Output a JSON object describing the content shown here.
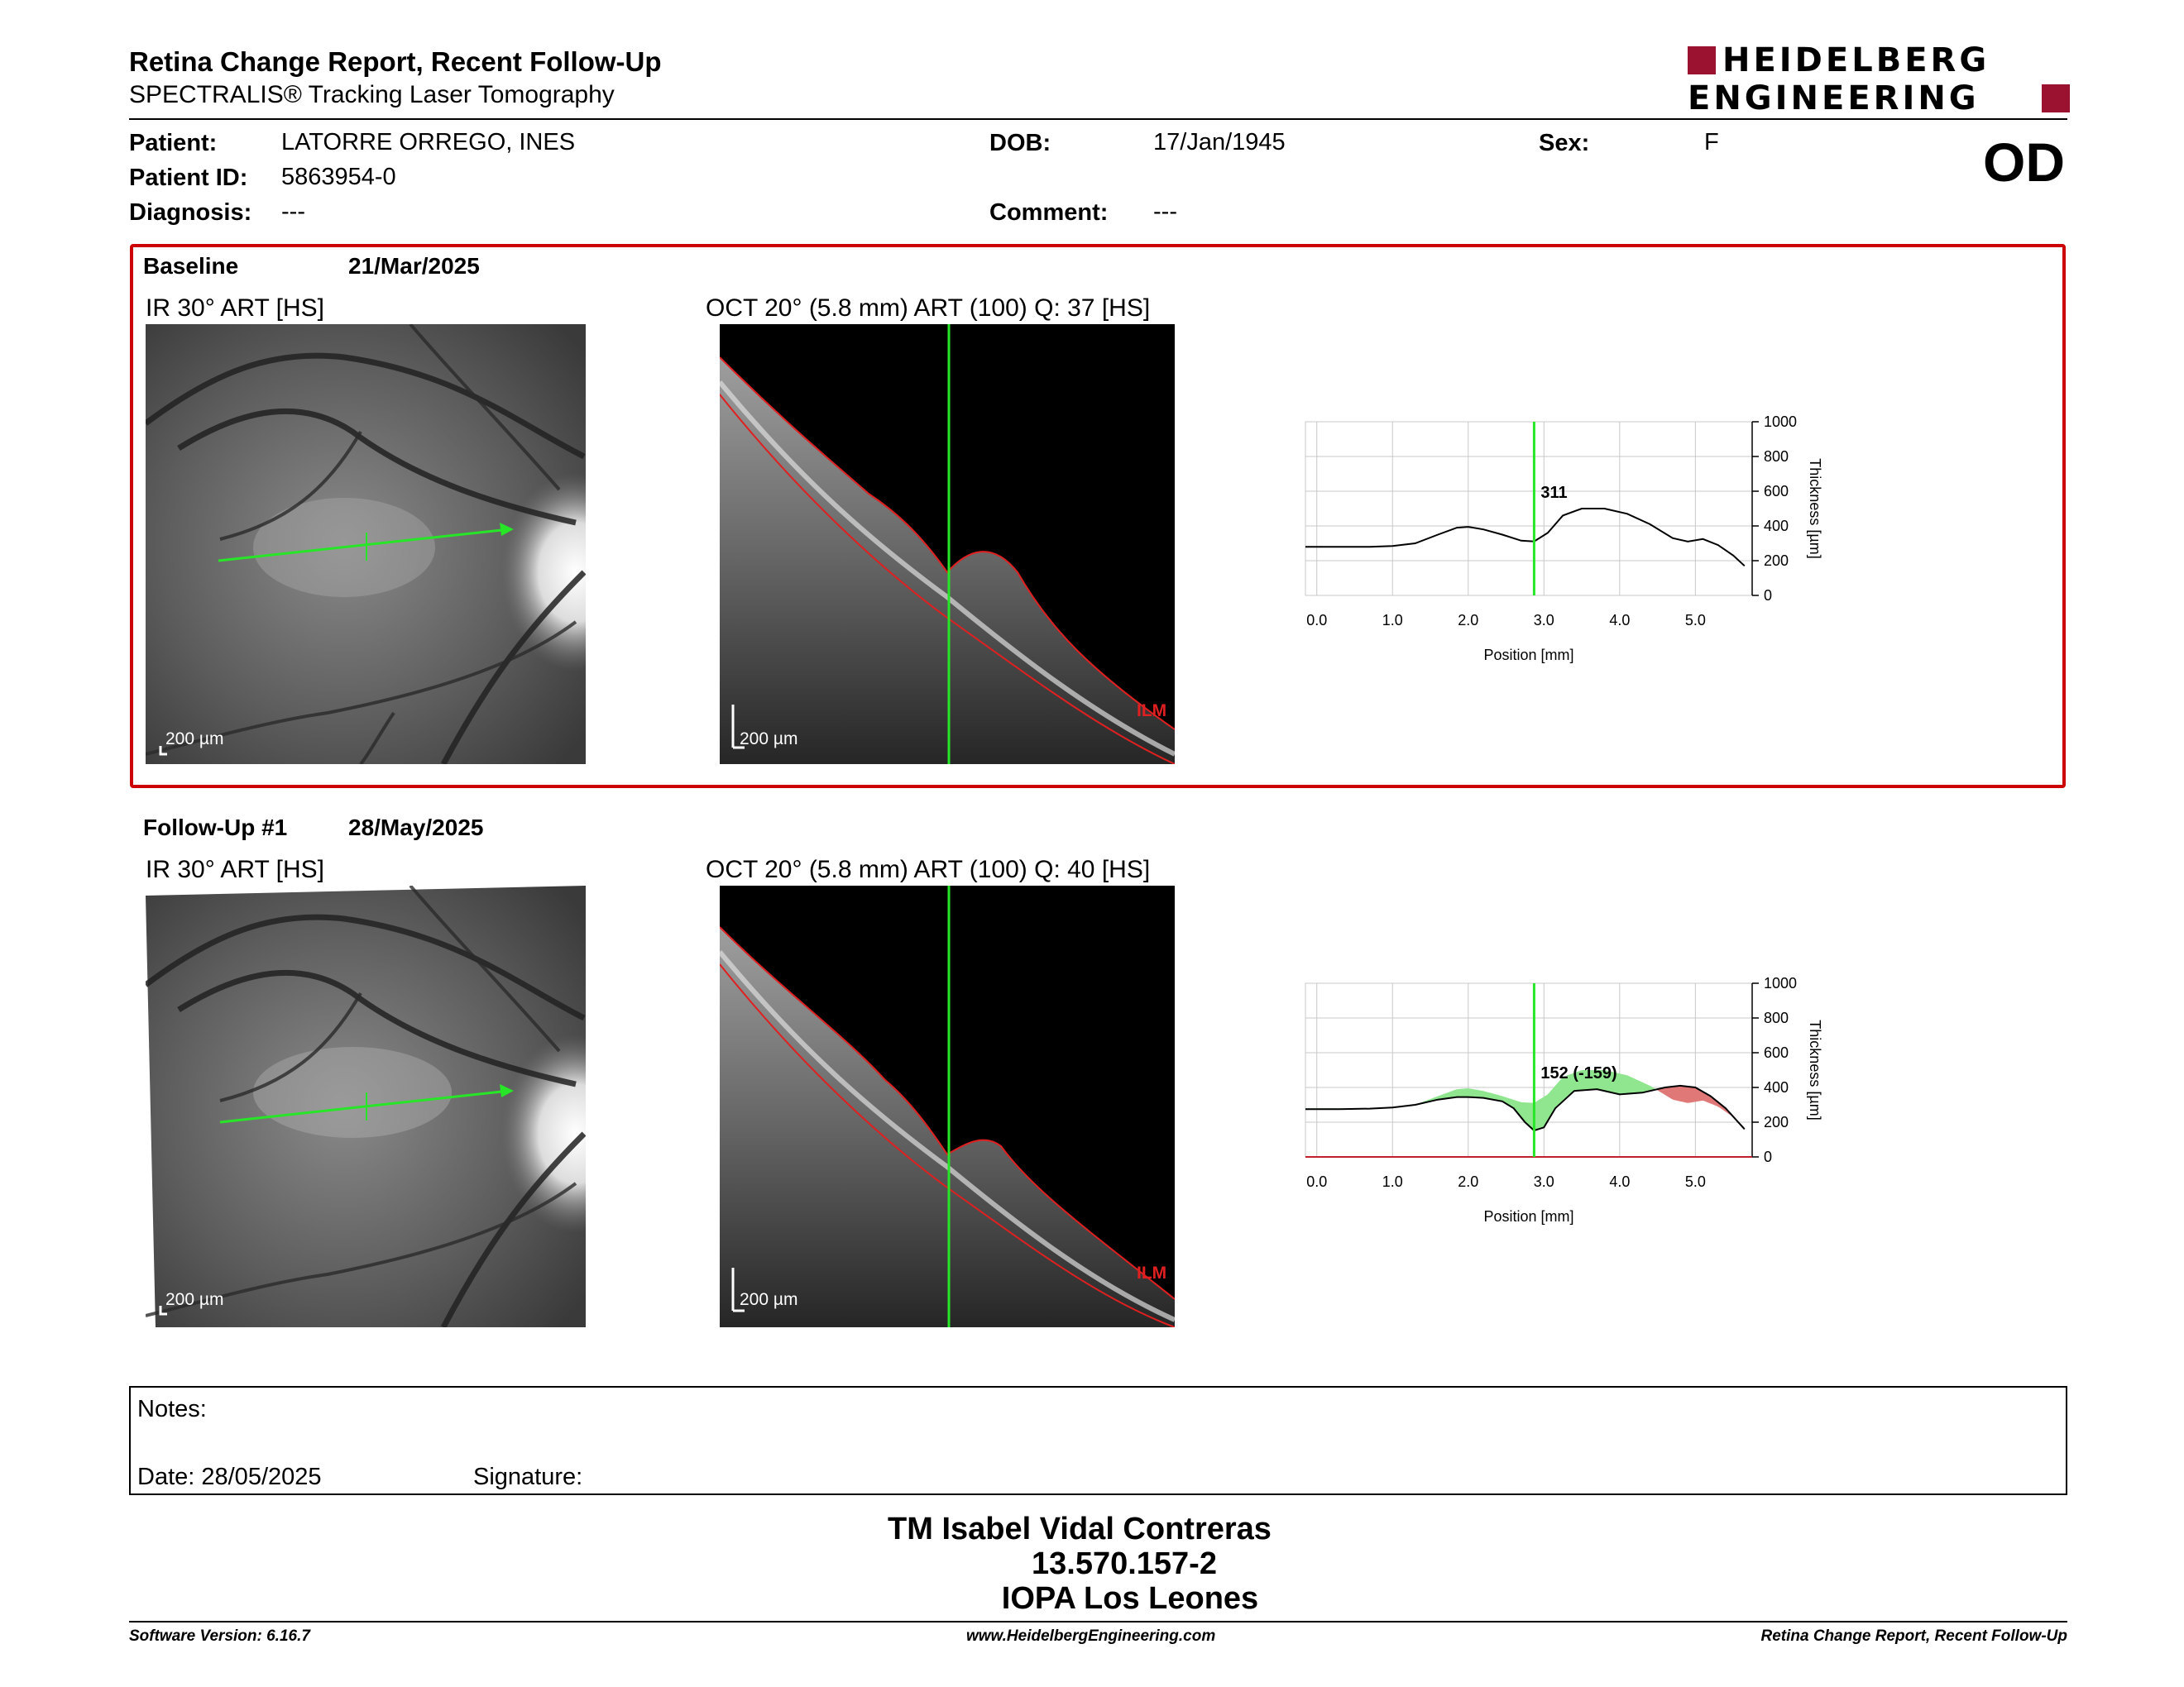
{
  "header": {
    "title": "Retina Change Report, Recent Follow-Up",
    "subtitle": "SPECTRALIS® Tracking Laser Tomography",
    "logo_line1": "HEIDELBERG",
    "logo_line2": "ENGINEERING",
    "eye": "OD"
  },
  "patient": {
    "patient_label": "Patient:",
    "patient_value": "LATORRE ORREGO, INES",
    "id_label": "Patient ID:",
    "id_value": "5863954-0",
    "diagnosis_label": "Diagnosis:",
    "diagnosis_value": "---",
    "dob_label": "DOB:",
    "dob_value": "17/Jan/1945",
    "comment_label": "Comment:",
    "comment_value": "---",
    "sex_label": "Sex:",
    "sex_value": "F"
  },
  "baseline": {
    "label": "Baseline",
    "date": "21/Mar/2025",
    "ir_label": "IR 30° ART [HS]",
    "oct_label": "OCT 20° (5.8 mm) ART (100) Q: 37 [HS]",
    "ir_scale": "200 µm",
    "oct_scale": "200 µm",
    "ilm": "ILM"
  },
  "followup": {
    "label": "Follow-Up #1",
    "date": "28/May/2025",
    "ir_label": "IR 30° ART [HS]",
    "oct_label": "OCT 20° (5.8 mm) ART (100) Q: 40 [HS]",
    "ir_scale": "200 µm",
    "oct_scale": "200 µm",
    "ilm": "ILM"
  },
  "chart_data": [
    {
      "type": "line",
      "xlabel": "Position [mm]",
      "ylabel": "Thickness [µm]",
      "xlim": [
        -0.15,
        5.75
      ],
      "ylim": [
        0,
        1000
      ],
      "x_ticks": [
        "0.0",
        "1.0",
        "2.0",
        "3.0",
        "4.0",
        "5.0"
      ],
      "y_ticks": [
        "0",
        "200",
        "400",
        "600",
        "800",
        "1000"
      ],
      "marker_x": 2.87,
      "marker_label": "311",
      "grid": true,
      "series": [
        {
          "x": [
            -0.15,
            0.3,
            0.7,
            1.0,
            1.3,
            1.6,
            1.85,
            2.0,
            2.2,
            2.45,
            2.7,
            2.87,
            3.05,
            3.25,
            3.5,
            3.8,
            4.1,
            4.4,
            4.7,
            4.9,
            5.1,
            5.3,
            5.5,
            5.65
          ],
          "y": [
            280,
            280,
            280,
            285,
            300,
            350,
            390,
            395,
            380,
            350,
            315,
            311,
            360,
            460,
            500,
            500,
            470,
            410,
            330,
            310,
            325,
            290,
            230,
            170
          ]
        }
      ]
    },
    {
      "type": "line",
      "xlabel": "Position [mm]",
      "ylabel": "Thickness [µm]",
      "xlim": [
        -0.15,
        5.75
      ],
      "ylim": [
        0,
        1000
      ],
      "x_ticks": [
        "0.0",
        "1.0",
        "2.0",
        "3.0",
        "4.0",
        "5.0"
      ],
      "y_ticks": [
        "0",
        "200",
        "400",
        "600",
        "800",
        "1000"
      ],
      "marker_x": 2.87,
      "marker_label": "152 (-159)",
      "grid": true,
      "series": [
        {
          "x": [
            -0.15,
            0.3,
            0.7,
            1.0,
            1.3,
            1.6,
            1.85,
            2.0,
            2.2,
            2.45,
            2.7,
            2.87,
            3.05,
            3.25,
            3.5,
            3.8,
            4.1,
            4.4,
            4.7,
            4.9,
            5.1,
            5.3,
            5.5,
            5.65
          ],
          "y": [
            280,
            280,
            280,
            285,
            300,
            350,
            390,
            395,
            380,
            350,
            315,
            311,
            360,
            460,
            500,
            500,
            470,
            410,
            330,
            310,
            325,
            290,
            230,
            170
          ]
        },
        {
          "x": [
            -0.15,
            0.3,
            0.7,
            1.0,
            1.3,
            1.6,
            1.85,
            2.0,
            2.2,
            2.45,
            2.6,
            2.75,
            2.87,
            3.0,
            3.15,
            3.4,
            3.7,
            4.0,
            4.3,
            4.6,
            4.8,
            5.0,
            5.2,
            5.4,
            5.65
          ],
          "y": [
            275,
            275,
            278,
            285,
            300,
            330,
            345,
            345,
            340,
            320,
            280,
            200,
            152,
            170,
            280,
            380,
            390,
            360,
            370,
            400,
            410,
            400,
            350,
            280,
            160
          ]
        }
      ],
      "increase_color": "#8fe68f",
      "decrease_color": "#e07878"
    }
  ],
  "notes": {
    "notes_label": "Notes:",
    "date_text": "Date: 28/05/2025",
    "signature_label": "Signature:"
  },
  "sign": {
    "name": "TM Isabel Vidal Contreras",
    "rut": "13.570.157-2",
    "clinic": "IOPA Los Leones"
  },
  "footer": {
    "software": "Software Version: 6.16.7",
    "website": "www.HeidelbergEngineering.com",
    "report": "Retina Change Report, Recent Follow-Up"
  }
}
